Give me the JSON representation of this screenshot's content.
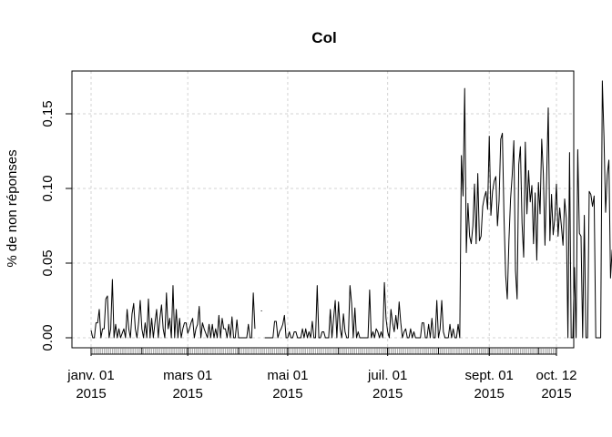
{
  "chart_data": {
    "type": "line",
    "title": "Col",
    "xlabel": "",
    "ylabel": "% de non réponses",
    "ylim": [
      0,
      0.17
    ],
    "x_range": [
      "2015-01-01",
      "2015-10-12"
    ],
    "grid": true,
    "x_ticks": [
      {
        "date": "2015-01-01",
        "line1": "janv. 01",
        "line2": "2015"
      },
      {
        "date": "2015-03-01",
        "line1": "mars 01",
        "line2": "2015"
      },
      {
        "date": "2015-05-01",
        "line1": "mai 01",
        "line2": "2015"
      },
      {
        "date": "2015-07-01",
        "line1": "juil. 01",
        "line2": "2015"
      },
      {
        "date": "2015-09-01",
        "line1": "sept. 01",
        "line2": "2015"
      },
      {
        "date": "2015-10-12",
        "line1": "oct. 12",
        "line2": "2015"
      }
    ],
    "y_ticks": [
      0.0,
      0.05,
      0.1,
      0.15
    ],
    "y_tick_labels": [
      "0.00",
      "0.05",
      "0.10",
      "0.15"
    ],
    "series": [
      {
        "color": "#000000",
        "segments": [
          {
            "start": "2015-01-01",
            "values": [
              0.005,
              0.0,
              0.0,
              0.01,
              0.01,
              0.019,
              0.0,
              0.006,
              0.006,
              0.026,
              0.028,
              0.0,
              0.006,
              0.039,
              0.0,
              0.009,
              0.0,
              0.006,
              0.0,
              0.003,
              0.006,
              0.0,
              0.019,
              0.006,
              0.0,
              0.016,
              0.023,
              0.006,
              0.0,
              0.01,
              0.025,
              0.006,
              0.0,
              0.01,
              0.0,
              0.026,
              0.0,
              0.013,
              0.0,
              0.01,
              0.019,
              0.0,
              0.013,
              0.022,
              0.006,
              0.0,
              0.03,
              0.006,
              0.013,
              0.0,
              0.035,
              0.0,
              0.019,
              0.0,
              0.013,
              0.0,
              0.006,
              0.01,
              0.01,
              0.003,
              0.006,
              0.01,
              0.013,
              0.0,
              0.006,
              0.009,
              0.021,
              0.0,
              0.01,
              0.006,
              0.003,
              0.0,
              0.009,
              0.0,
              0.009,
              0.0,
              0.006,
              0.0,
              0.015,
              0.0,
              0.013,
              0.006,
              0.006,
              0.0,
              0.009,
              0.0,
              0.014,
              0.0,
              0.0,
              0.012,
              0.0,
              0.0,
              0.0,
              0.0,
              0.0,
              0.0,
              0.009,
              0.0,
              0.0,
              0.03,
              0.006
            ]
          },
          {
            "start": "2015-04-15",
            "values": [
              0.018
            ]
          },
          {
            "start": "2015-04-17",
            "values": [
              0.0,
              0.0,
              0.0,
              0.0,
              0.0,
              0.0,
              0.011,
              0.011,
              0.0,
              0.004,
              0.006,
              0.009,
              0.015,
              0.0,
              0.0,
              0.004,
              0.0,
              0.0,
              0.004,
              0.004,
              0.0,
              0.0,
              0.0,
              0.006,
              0.0,
              0.006,
              0.0,
              0.004,
              0.0,
              0.011,
              0.0,
              0.0,
              0.035,
              0.0,
              0.0,
              0.004,
              0.004,
              0.0,
              0.0,
              0.0,
              0.019,
              0.0,
              0.013,
              0.025,
              0.0,
              0.024,
              0.006,
              0.0,
              0.016,
              0.004,
              0.0,
              0.0,
              0.035,
              0.023,
              0.0,
              0.02,
              0.0,
              0.004,
              0.0,
              0.0,
              0.0,
              0.0,
              0.0,
              0.0,
              0.032,
              0.0,
              0.004,
              0.0,
              0.006,
              0.004,
              0.0,
              0.004,
              0.0,
              0.037,
              0.013,
              0.004,
              0.0,
              0.019,
              0.01,
              0.004,
              0.015,
              0.006,
              0.024,
              0.01,
              0.0,
              0.004,
              0.006,
              0.0,
              0.0,
              0.006,
              0.0,
              0.004,
              0.0,
              0.0,
              0.0,
              0.0,
              0.01,
              0.01,
              0.0,
              0.0,
              0.009,
              0.0,
              0.013,
              0.0,
              0.0,
              0.025,
              0.0,
              0.006,
              0.025,
              0.004,
              0.0,
              0.0,
              0.0,
              0.009,
              0.0,
              0.006,
              0.0,
              0.0,
              0.009,
              0.0,
              0.122,
              0.095,
              0.167,
              0.057,
              0.09,
              0.068,
              0.063,
              0.075,
              0.103,
              0.063,
              0.11,
              0.065,
              0.068,
              0.088,
              0.094,
              0.098,
              0.086,
              0.135,
              0.082,
              0.098,
              0.105,
              0.108,
              0.075,
              0.092,
              0.133,
              0.137,
              0.081,
              0.042,
              0.026,
              0.065,
              0.093,
              0.109,
              0.132,
              0.045,
              0.026,
              0.116,
              0.128,
              0.077,
              0.054,
              0.131,
              0.083,
              0.112,
              0.091,
              0.102,
              0.063,
              0.097,
              0.052,
              0.104,
              0.083,
              0.133,
              0.11,
              0.062,
              0.106,
              0.154,
              0.065,
              0.096,
              0.069,
              0.08,
              0.103,
              0.068,
              0.087,
              0.075,
              0.062,
              0.093,
              0.08,
              0.0,
              0.124,
              0.0,
              0.0,
              0.047,
              0.0,
              0.126,
              0.07,
              0.068,
              0.0,
              0.082,
              0.0,
              0.0,
              0.098,
              0.096,
              0.088,
              0.095,
              0.0,
              0.0,
              0.0,
              0.0,
              0.172,
              0.135,
              0.084,
              0.109,
              0.119,
              0.04,
              0.059
            ]
          }
        ]
      }
    ]
  }
}
